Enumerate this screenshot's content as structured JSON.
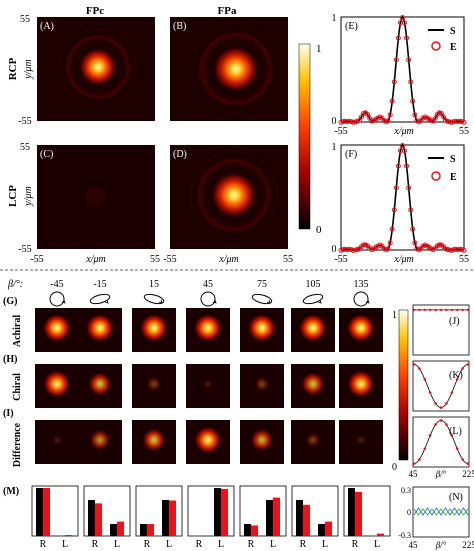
{
  "top": {
    "col_titles": [
      "FPc",
      "FPa"
    ],
    "row_titles": [
      "RCP",
      "LCP"
    ],
    "panel_labels": [
      "(A)",
      "(B)",
      "(C)",
      "(D)"
    ],
    "y_axis_label": "y/μm",
    "x_axis_label": "x/μm",
    "y_ticks": [
      "55",
      "-55"
    ],
    "x_ticks": [
      "-55",
      "55"
    ],
    "colorbar_ticks": [
      "1",
      "0"
    ],
    "colors": {
      "hot_peak": "#fff8a8",
      "hot_mid": "#ff4400",
      "hot_low": "#8a0000",
      "background": "#000000"
    }
  },
  "profiles": {
    "panels": [
      {
        "label": "(E)",
        "legend": [
          "S",
          "E"
        ],
        "y_ticks": [
          "1",
          "0"
        ],
        "x_ticks": [
          "-55",
          "55"
        ],
        "xlabel": "x/μm"
      },
      {
        "label": "(F)",
        "legend": [
          "S",
          "E"
        ],
        "y_ticks": [
          "1",
          "0"
        ],
        "x_ticks": [
          "-55",
          "55"
        ],
        "xlabel": "x/μm"
      }
    ]
  },
  "bottom": {
    "beta_label": "β/°:",
    "angles": [
      "-45",
      "-15",
      "15",
      "45",
      "75",
      "105",
      "135"
    ],
    "rows": [
      {
        "label": "(G)",
        "name": "Achiral"
      },
      {
        "label": "(H)",
        "name": "Chiral"
      },
      {
        "label": "(I)",
        "name": "Difference"
      }
    ],
    "intensities": {
      "achiral": [
        1.0,
        1.0,
        1.0,
        1.0,
        1.0,
        1.0,
        1.0
      ],
      "chiral": [
        0.95,
        0.75,
        0.3,
        0.05,
        0.3,
        0.75,
        0.95
      ],
      "difference": [
        0.05,
        0.6,
        0.75,
        0.95,
        0.7,
        0.3,
        0.08
      ]
    },
    "colorbar_ticks": [
      "1",
      "0"
    ],
    "side_panels": [
      {
        "label": "(J)"
      },
      {
        "label": "(K)"
      },
      {
        "label": "(L)",
        "xlabel": "β/°",
        "x_ticks": [
          "45",
          "225"
        ]
      },
      {
        "label": "(N)",
        "xlabel": "β/°",
        "x_ticks": [
          "45",
          "225"
        ],
        "y_ticks": [
          "0.3",
          "0",
          "-0.3"
        ]
      }
    ],
    "bars": {
      "label": "(M)",
      "categories": [
        "R",
        "L"
      ],
      "colors": {
        "black": "#000000",
        "red": "#e8141c"
      }
    }
  },
  "chart_data": [
    {
      "type": "line",
      "title": "(E)",
      "xlabel": "x/μm",
      "xlim": [
        -55,
        55
      ],
      "ylim": [
        0,
        1
      ],
      "series": [
        {
          "name": "S"
        },
        {
          "name": "E"
        }
      ]
    },
    {
      "type": "line",
      "title": "(F)",
      "xlabel": "x/μm",
      "xlim": [
        -55,
        55
      ],
      "ylim": [
        0,
        1
      ],
      "series": [
        {
          "name": "S"
        },
        {
          "name": "E"
        }
      ]
    },
    {
      "type": "bar",
      "title": "(M)",
      "categories": [
        "R",
        "L"
      ],
      "groups": [
        {
          "black": [
            1.0,
            0.0
          ],
          "red": [
            1.0,
            0.02
          ]
        },
        {
          "black": [
            0.75,
            0.25
          ],
          "red": [
            0.68,
            0.3
          ]
        },
        {
          "black": [
            0.25,
            0.75
          ],
          "red": [
            0.25,
            0.74
          ]
        },
        {
          "black": [
            0.0,
            1.0
          ],
          "red": [
            0.0,
            0.98
          ]
        },
        {
          "black": [
            0.25,
            0.75
          ],
          "red": [
            0.22,
            0.8
          ]
        },
        {
          "black": [
            0.75,
            0.25
          ],
          "red": [
            0.65,
            0.3
          ]
        },
        {
          "black": [
            1.0,
            0.0
          ],
          "red": [
            0.92,
            0.05
          ]
        }
      ]
    }
  ]
}
